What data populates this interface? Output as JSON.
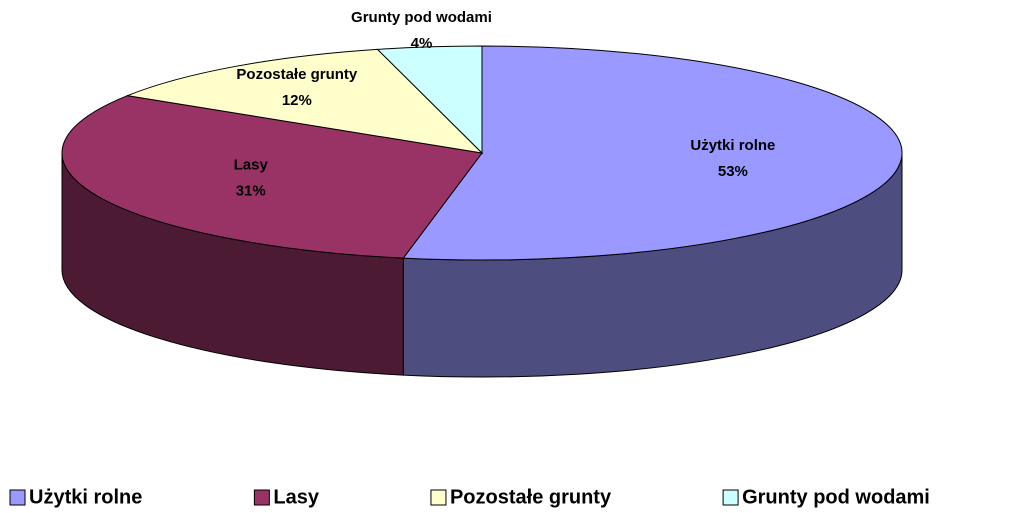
{
  "chart_data": {
    "type": "pie",
    "categories": [
      "Użytki rolne",
      "Lasy",
      "Pozostałe grunty",
      "Grunty pod wodami"
    ],
    "values": [
      53,
      31,
      12,
      4
    ],
    "value_labels": [
      "53%",
      "31%",
      "12%",
      "4%"
    ],
    "colors": [
      "#9999ff",
      "#993366",
      "#ffffcc",
      "#ccffff"
    ],
    "legend": "bottom"
  }
}
